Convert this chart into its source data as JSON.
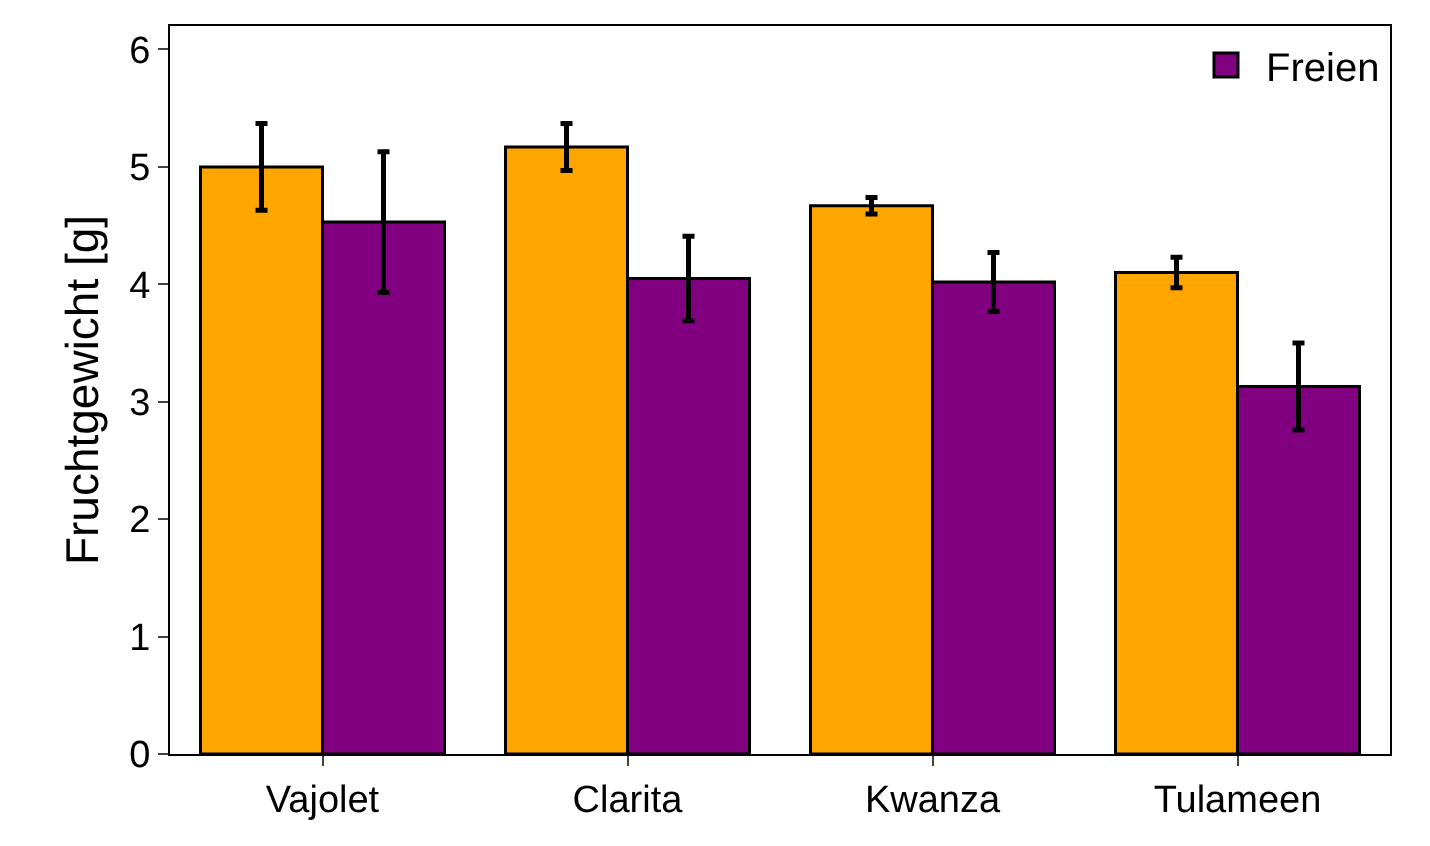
{
  "chart_data": {
    "type": "bar",
    "ylabel": "Fruchtgewicht [g]",
    "categories": [
      "Vajolet",
      "Clarita",
      "Kwanza",
      "Tulameen"
    ],
    "series": [
      {
        "color": "#ffa500",
        "values": [
          5.0,
          5.17,
          4.67,
          4.1
        ],
        "errors": [
          0.37,
          0.2,
          0.07,
          0.13
        ]
      },
      {
        "name": "Freien",
        "color": "#800080",
        "values": [
          4.53,
          4.05,
          4.02,
          3.13
        ],
        "errors": [
          0.6,
          0.36,
          0.25,
          0.37
        ]
      }
    ],
    "ylim": [
      0,
      6.2
    ],
    "yticks": [
      0,
      1,
      2,
      3,
      4,
      5,
      6
    ],
    "legend": "top right"
  }
}
